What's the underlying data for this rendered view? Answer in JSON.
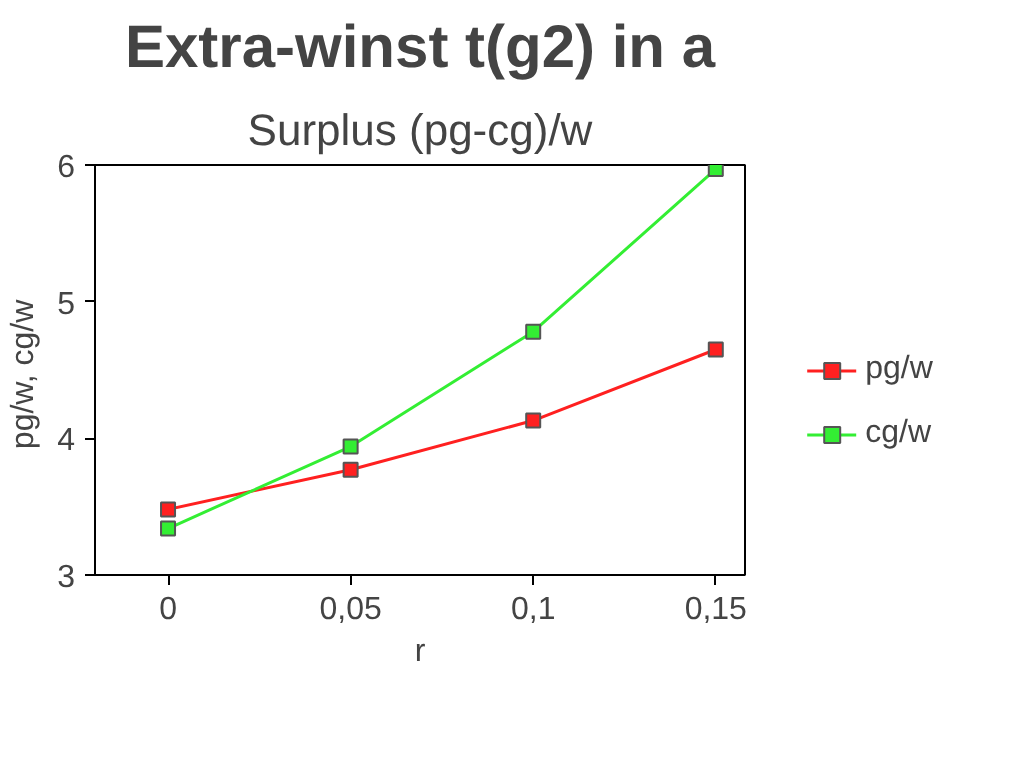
{
  "chart_data": {
    "type": "line",
    "title": "Extra-winst t(g2) in a",
    "subtitle": "Surplus (pg-cg)/w",
    "xlabel": "r",
    "ylabel": "pg/w,  cg/w",
    "x": [
      0,
      0.05,
      0.1,
      0.15
    ],
    "series": [
      {
        "name": "pg/w",
        "color": "#ff2020",
        "values": [
          3.48,
          3.77,
          4.13,
          4.65
        ]
      },
      {
        "name": "cg/w",
        "color": "#33ee33",
        "values": [
          3.34,
          3.94,
          4.78,
          5.97
        ]
      }
    ],
    "xlim": [
      -0.02,
      0.158
    ],
    "ylim": [
      3,
      6
    ],
    "xticks": [
      0,
      {
        "value": 0.05,
        "label": "0,05"
      },
      {
        "value": 0.1,
        "label": "0,1"
      },
      {
        "value": 0.15,
        "label": "0,15"
      }
    ],
    "yticks": [
      3,
      4,
      5,
      6
    ],
    "grid": false,
    "legend": "right",
    "marker": "square",
    "line_style": "solid"
  }
}
